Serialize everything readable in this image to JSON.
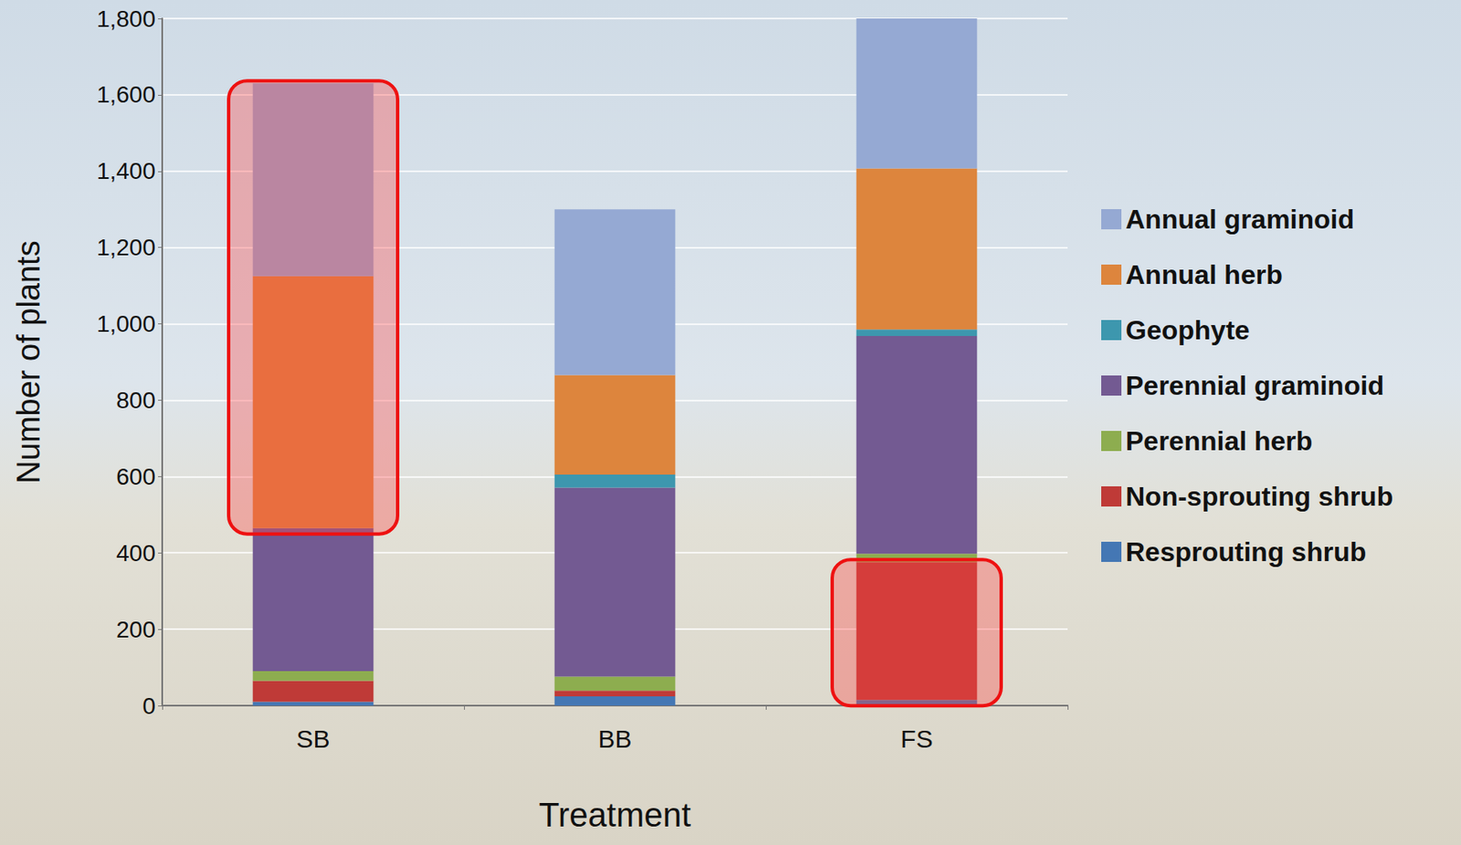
{
  "chart_data": {
    "type": "bar",
    "stacked": true,
    "grid": true,
    "legend": "right",
    "x_label": "Treatment",
    "y_label": "Number of plants",
    "categories": [
      "SB",
      "BB",
      "FS"
    ],
    "ylim": [
      0,
      1800
    ],
    "yticks": [
      0,
      200,
      400,
      600,
      800,
      1000,
      1200,
      1400,
      1600,
      1800
    ],
    "series": [
      {
        "name": "Resprouting shrub",
        "color": "#4477b4",
        "values": [
          10,
          24,
          15
        ]
      },
      {
        "name": "Non-sprouting shrub",
        "color": "#bf3a37",
        "values": [
          55,
          15,
          361
        ]
      },
      {
        "name": "Perennial herb",
        "color": "#8dad4f",
        "values": [
          25,
          37,
          22
        ]
      },
      {
        "name": "Perennial graminoid",
        "color": "#735a92",
        "values": [
          375,
          495,
          570
        ]
      },
      {
        "name": "Geophyte",
        "color": "#3d97ae",
        "values": [
          0,
          34,
          17
        ]
      },
      {
        "name": "Annual herb",
        "color": "#dd853d",
        "values": [
          660,
          261,
          422
        ]
      },
      {
        "name": "Annual graminoid",
        "color": "#95a9d3",
        "values": [
          505,
          434,
          393
        ]
      }
    ]
  }
}
